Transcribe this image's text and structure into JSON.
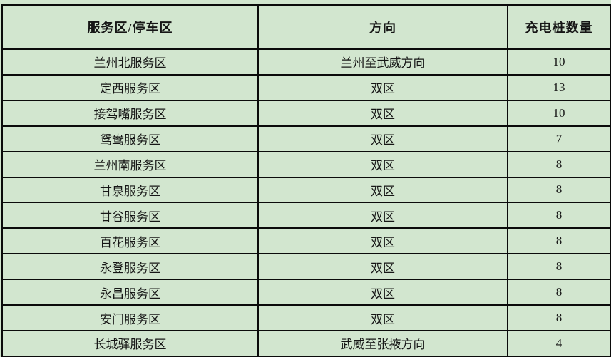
{
  "colors": {
    "background": "#d2e6cf",
    "border": "#0b0b0b",
    "text": "#161616"
  },
  "table": {
    "headers": [
      "服务区/停车区",
      "方向",
      "充电桩数量"
    ],
    "rows": [
      {
        "area": "兰州北服务区",
        "direction": "兰州至武威方向",
        "count": "10"
      },
      {
        "area": "定西服务区",
        "direction": "双区",
        "count": "13"
      },
      {
        "area": "接驾嘴服务区",
        "direction": "双区",
        "count": "10"
      },
      {
        "area": "鸳鸯服务区",
        "direction": "双区",
        "count": "7"
      },
      {
        "area": "兰州南服务区",
        "direction": "双区",
        "count": "8"
      },
      {
        "area": "甘泉服务区",
        "direction": "双区",
        "count": "8"
      },
      {
        "area": "甘谷服务区",
        "direction": "双区",
        "count": "8"
      },
      {
        "area": "百花服务区",
        "direction": "双区",
        "count": "8"
      },
      {
        "area": "永登服务区",
        "direction": "双区",
        "count": "8"
      },
      {
        "area": "永昌服务区",
        "direction": "双区",
        "count": "8"
      },
      {
        "area": "安门服务区",
        "direction": "双区",
        "count": "8"
      },
      {
        "area": "长城驿服务区",
        "direction": "武威至张掖方向",
        "count": "4"
      }
    ]
  }
}
